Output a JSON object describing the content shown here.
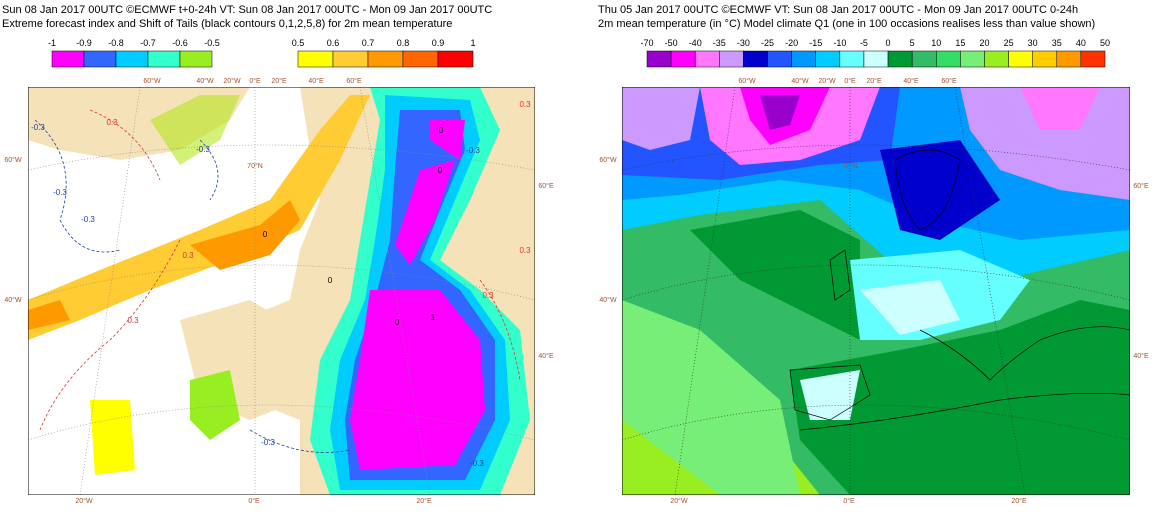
{
  "left_panel": {
    "title_line1": "Sun 08 Jan 2017 00UTC ©ECMWF t+0-24h  VT: Sun 08 Jan 2017 00UTC - Mon 09 Jan 2017 00UTC",
    "title_line2": "Extreme forecast index and Shift of Tails (black contours 0,1,2,5,8) for 2m mean temperature",
    "colorbar_negative": {
      "labels": [
        "-1",
        "-0.9",
        "-0.8",
        "-0.7",
        "-0.6",
        "-0.5"
      ],
      "colors": [
        "#ff00ff",
        "#3366ff",
        "#00ccff",
        "#33ffcc",
        "#99ee22"
      ]
    },
    "colorbar_positive": {
      "labels": [
        "0.5",
        "0.6",
        "0.7",
        "0.8",
        "0.9",
        "1"
      ],
      "colors": [
        "#ffff00",
        "#ffcc33",
        "#ff9900",
        "#ff6600",
        "#ff0000"
      ]
    },
    "map_labels": [
      "60°W",
      "40°W",
      "20°W",
      "0°E",
      "20°E",
      "40°E",
      "60°E",
      "60°W",
      "40°W",
      "60°E",
      "40°E",
      "20°W",
      "0°E",
      "20°E",
      "70°N"
    ],
    "contour_labels": [
      "-0.3",
      "-0.3",
      "-0.3",
      "-0.3",
      "-0.3",
      "-0.3",
      "-0.3",
      "0.3",
      "0.3",
      "0.3",
      "0.3",
      "0.3",
      "0.3",
      "0",
      "0",
      "0",
      "0",
      "1",
      "0"
    ]
  },
  "right_panel": {
    "title_line1": "Thu 05 Jan 2017 00UTC ©ECMWF VT: Sun 08 Jan 2017 00UTC - Mon 09 Jan 2017 00UTC   0-24h",
    "title_line2": "2m mean temperature (in °C)  Model climate Q1 (one in 100 occasions realises less than value shown)",
    "colorbar": {
      "labels": [
        "-70",
        "-50",
        "-40",
        "-35",
        "-30",
        "-25",
        "-20",
        "-15",
        "-10",
        "-5",
        "0",
        "5",
        "10",
        "15",
        "20",
        "25",
        "30",
        "35",
        "40",
        "50"
      ],
      "colors": [
        "#9900cc",
        "#ff00ff",
        "#ff77ff",
        "#cc99ff",
        "#0000cc",
        "#2255ff",
        "#0099ff",
        "#00ccff",
        "#66ffff",
        "#ccffff",
        "#009933",
        "#33bb66",
        "#33dd66",
        "#77ee77",
        "#99ee22",
        "#ffff00",
        "#ffcc00",
        "#ff9900",
        "#ff3300"
      ]
    },
    "map_labels": [
      "60°W",
      "40°W",
      "20°W",
      "0°E",
      "20°E",
      "40°E",
      "60°E",
      "60°W",
      "40°W",
      "60°E",
      "40°E",
      "20°W",
      "0°E",
      "20°E",
      "70°N"
    ]
  }
}
